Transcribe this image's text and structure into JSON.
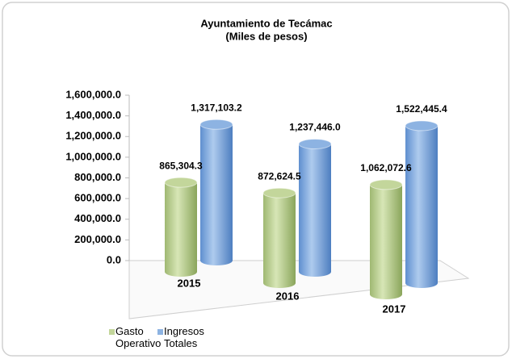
{
  "chart_data": {
    "type": "bar3d",
    "title": "Ayuntamiento de Tecámac",
    "subtitle": "(Miles de pesos)",
    "categories": [
      "2015",
      "2016",
      "2017"
    ],
    "series": [
      {
        "name": "Gasto Operativo",
        "color": "#c3d69b",
        "values": [
          865304.3,
          872624.5,
          1062072.6
        ],
        "value_labels": [
          "865,304.3",
          "872,624.5",
          "1,062,072.6"
        ]
      },
      {
        "name": "Ingresos Totales",
        "color": "#8db3e2",
        "values": [
          1317103.2,
          1237446.0,
          1522445.4
        ],
        "value_labels": [
          "1,317,103.2",
          "1,237,446.0",
          "1,522,445.4"
        ]
      }
    ],
    "ylim": [
      0,
      1600000
    ],
    "yticks": [
      {
        "value": 0,
        "label": "0.0"
      },
      {
        "value": 200000,
        "label": "200,000.0"
      },
      {
        "value": 400000,
        "label": "400,000.0"
      },
      {
        "value": 600000,
        "label": "600,000.0"
      },
      {
        "value": 800000,
        "label": "800,000.0"
      },
      {
        "value": 1000000,
        "label": "1,000,000.0"
      },
      {
        "value": 1200000,
        "label": "1,200,000.0"
      },
      {
        "value": 1400000,
        "label": "1,400,000.0"
      },
      {
        "value": 1600000,
        "label": "1,600,000.0"
      }
    ],
    "legend": "bottom-left"
  }
}
